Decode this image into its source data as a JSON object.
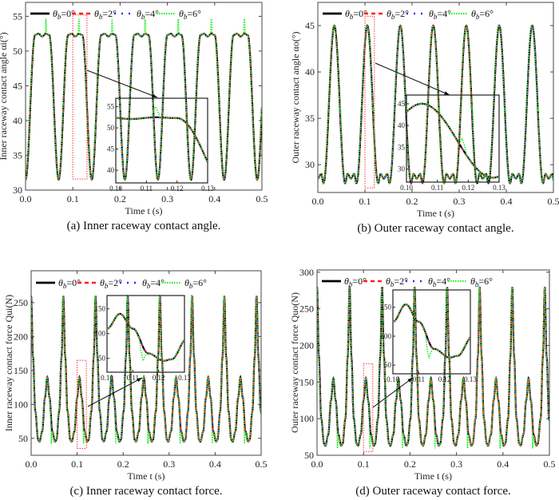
{
  "legend": [
    {
      "symbol": "θ",
      "sub": "b",
      "value": "=0°",
      "color": "#000000",
      "style": "solid"
    },
    {
      "symbol": "θ",
      "sub": "b",
      "value": "=2°",
      "color": "#ff2020",
      "style": "dash"
    },
    {
      "symbol": "θ",
      "sub": "b",
      "value": "=4°",
      "color": "#2030ff",
      "style": "dot"
    },
    {
      "symbol": "θ",
      "sub": "b",
      "value": "=6°",
      "color": "#22ee22",
      "style": "dense-dot"
    }
  ],
  "chart_data": [
    {
      "type": "line",
      "caption": "(a) Inner raceway contact angle.",
      "xlabel": "Time t (s)",
      "ylabel": "Inner raceway contact angle αi(°)",
      "xlim": [
        0,
        0.5
      ],
      "ylim": [
        30,
        57
      ],
      "xticks": [
        "0.0",
        "0.1",
        "0.2",
        "0.3",
        "0.4",
        "0.5"
      ],
      "yticks": [
        "30",
        "35",
        "40",
        "45",
        "50",
        "55"
      ],
      "period": 0.07,
      "phase": 0.0,
      "cycle": [
        [
          0,
          31.5
        ],
        [
          0.02,
          52.3
        ],
        [
          0.027,
          52.5
        ],
        [
          0.035,
          52.1
        ],
        [
          0.043,
          52.5
        ],
        [
          0.05,
          52.3
        ],
        [
          0.07,
          31.5
        ]
      ],
      "spike_6deg": {
        "dt": 0.043,
        "value": 55
      },
      "zoom_box": [
        0.1,
        0.13,
        31.6,
        55.2
      ],
      "inset": {
        "xlim": [
          0.1,
          0.13
        ],
        "ylim": [
          37,
          57
        ],
        "xticks": [
          "0.10",
          "0.11",
          "0.12",
          "0.13"
        ],
        "yticks": [
          "40",
          "45",
          "50",
          "55"
        ]
      }
    },
    {
      "type": "line",
      "caption": "(b) Outer raceway contact angle.",
      "xlabel": "Time t (s)",
      "ylabel": "Outer raceway contact angle αo(°)",
      "xlim": [
        0,
        0.5
      ],
      "ylim": [
        27,
        47.5
      ],
      "xticks": [
        "0.0",
        "0.1",
        "0.2",
        "0.3",
        "0.4",
        "0.5"
      ],
      "yticks": [
        "30",
        "35",
        "40",
        "45"
      ],
      "period": 0.07,
      "phase": -0.035,
      "cycle": [
        [
          0,
          45
        ],
        [
          0.023,
          28
        ],
        [
          0.028,
          29
        ],
        [
          0.035,
          28.5
        ],
        [
          0.042,
          29
        ],
        [
          0.047,
          28
        ],
        [
          0.07,
          45
        ]
      ],
      "spike_6deg": {
        "dt": 0.013,
        "value": 37
      },
      "zoom_box": [
        0.1,
        0.12,
        27.5,
        46
      ],
      "inset": {
        "xlim": [
          0.1,
          0.13
        ],
        "ylim": [
          27,
          47
        ],
        "xticks": [
          "0.10",
          "0.11",
          "0.12",
          "0.13"
        ],
        "yticks": [
          "30",
          "35",
          "40",
          "45"
        ]
      }
    },
    {
      "type": "line",
      "caption": "(c) Inner raceway contact force.",
      "xlabel": "Time t (s)",
      "ylabel": "Inner raceway contact force Qui(N)",
      "xlim": [
        0,
        0.5
      ],
      "ylim": [
        25,
        297
      ],
      "xticks": [
        "0.0",
        "0.1",
        "0.2",
        "0.3",
        "0.4",
        "0.5"
      ],
      "yticks": [
        "50",
        "100",
        "150",
        "200",
        "250"
      ],
      "period": 0.07,
      "phase": 0.0,
      "cycle": [
        [
          0,
          260
        ],
        [
          0.004,
          170
        ],
        [
          0.009,
          90
        ],
        [
          0.015,
          48
        ],
        [
          0.018,
          45
        ],
        [
          0.024,
          60
        ],
        [
          0.03,
          110
        ],
        [
          0.035,
          140
        ],
        [
          0.04,
          110
        ],
        [
          0.046,
          60
        ],
        [
          0.052,
          45
        ],
        [
          0.055,
          48
        ],
        [
          0.061,
          90
        ],
        [
          0.066,
          170
        ],
        [
          0.07,
          260
        ]
      ],
      "spike_6deg": {
        "dt": 0.044,
        "value": 45
      },
      "zoom_box": [
        0.1,
        0.12,
        35,
        165
      ],
      "inset": {
        "xlim": [
          0.1,
          0.13
        ],
        "ylim": [
          22,
          177
        ],
        "xticks": [
          "0.10",
          "0.11",
          "0.12",
          "0.13"
        ],
        "yticks": [
          "50",
          "100",
          "150"
        ]
      }
    },
    {
      "type": "line",
      "caption": "(d) Outer raceway contact force.",
      "xlabel": "Time t (s)",
      "ylabel": "Outer raceway contact force Quo(N)",
      "xlim": [
        0,
        0.5
      ],
      "ylim": [
        50,
        303
      ],
      "xticks": [
        "0.0",
        "0.1",
        "0.2",
        "0.3",
        "0.4",
        "0.5"
      ],
      "yticks": [
        "50",
        "100",
        "150",
        "200",
        "250",
        "300"
      ],
      "period": 0.07,
      "phase": 0.0,
      "cycle": [
        [
          0,
          280
        ],
        [
          0.004,
          185
        ],
        [
          0.009,
          100
        ],
        [
          0.015,
          66
        ],
        [
          0.018,
          63
        ],
        [
          0.024,
          78
        ],
        [
          0.03,
          125
        ],
        [
          0.035,
          155
        ],
        [
          0.04,
          125
        ],
        [
          0.046,
          78
        ],
        [
          0.052,
          63
        ],
        [
          0.055,
          66
        ],
        [
          0.061,
          100
        ],
        [
          0.066,
          185
        ],
        [
          0.07,
          280
        ]
      ],
      "spike_6deg": {
        "dt": 0.044,
        "value": 62
      },
      "zoom_box": [
        0.1,
        0.12,
        55,
        175
      ],
      "inset": {
        "xlim": [
          0.1,
          0.13
        ],
        "ylim": [
          35,
          180
        ],
        "xticks": [
          "0.10",
          "0.11",
          "0.12",
          "0.13"
        ],
        "yticks": [
          "50",
          "100",
          "150"
        ]
      }
    }
  ]
}
